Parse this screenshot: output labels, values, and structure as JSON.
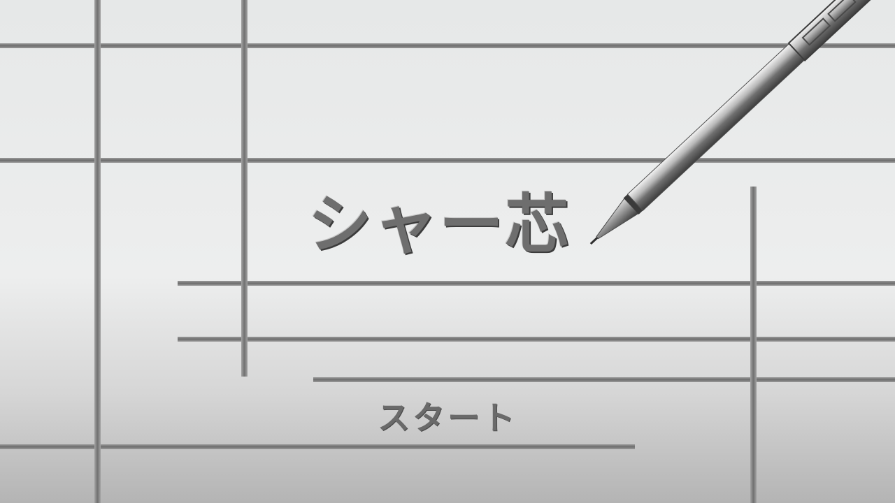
{
  "game": {
    "title": "シャー芯",
    "start_label": "スタート"
  },
  "theme": {
    "background": "#ebecec",
    "grid_line": "#7a7a7a",
    "lead_color": "#6e6e6e"
  },
  "decor": {
    "pencil_icon": "mechanical-pencil-icon"
  }
}
